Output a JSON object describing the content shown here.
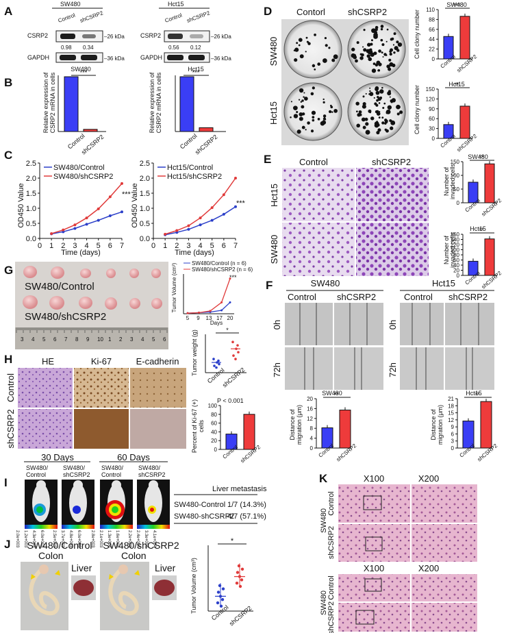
{
  "panels": {
    "A": {
      "letter": "A",
      "blots": [
        {
          "cell": "SW480",
          "lanes": [
            "Control",
            "shCSRP2"
          ],
          "rows": [
            "CSRP2",
            "GAPDH"
          ],
          "values": [
            "0.98",
            "0.34"
          ],
          "kda": [
            "26 kDa",
            "36 kDa"
          ]
        },
        {
          "cell": "Hct15",
          "lanes": [
            "Control",
            "shCSRP2"
          ],
          "rows": [
            "CSRP2",
            "GAPDH"
          ],
          "values": [
            "0.56",
            "0.12"
          ],
          "kda": [
            "26 kDa",
            "36 kDa"
          ]
        }
      ]
    },
    "B": {
      "letter": "B",
      "ylabel_line1": "Relative expression of",
      "ylabel_line2": "CSRP2 mRNA in cells",
      "sig": "***",
      "charts": [
        {
          "title": "SW480",
          "categories": [
            "Control",
            "shCSRP2"
          ],
          "values": [
            1.0,
            0.04
          ]
        },
        {
          "title": "Hct15",
          "categories": [
            "Control",
            "shCSRP2"
          ],
          "values": [
            1.0,
            0.07
          ]
        }
      ]
    },
    "C": {
      "letter": "C",
      "ylabel": "OD450 Value",
      "xlabel": "Time (days)",
      "sig": "***",
      "xticks": [
        "0",
        "1",
        "2",
        "3",
        "4",
        "5",
        "6",
        "7"
      ],
      "yticks": [
        "0.0",
        "0.5",
        "1.0",
        "1.5",
        "2.0",
        "2.5"
      ],
      "charts": [
        {
          "series": [
            {
              "name": "SW480/Control",
              "color": "#2b3fc9",
              "x": [
                1,
                2,
                3,
                4,
                5,
                6,
                7
              ],
              "y": [
                0.15,
                0.22,
                0.33,
                0.47,
                0.6,
                0.75,
                0.88
              ]
            },
            {
              "name": "SW480/shCSRP2",
              "color": "#e03a3a",
              "x": [
                1,
                2,
                3,
                4,
                5,
                6,
                7
              ],
              "y": [
                0.16,
                0.28,
                0.45,
                0.68,
                0.98,
                1.38,
                1.82
              ]
            }
          ]
        },
        {
          "series": [
            {
              "name": "Hct15/Control",
              "color": "#2b3fc9",
              "x": [
                1,
                2,
                3,
                4,
                5,
                6,
                7
              ],
              "y": [
                0.12,
                0.2,
                0.3,
                0.45,
                0.6,
                0.8,
                1.05
              ]
            },
            {
              "name": "Hct15/shCSRP2",
              "color": "#e03a3a",
              "x": [
                1,
                2,
                3,
                4,
                5,
                6,
                7
              ],
              "y": [
                0.14,
                0.26,
                0.42,
                0.68,
                1.02,
                1.45,
                2.0
              ]
            }
          ]
        }
      ]
    },
    "D": {
      "letter": "D",
      "cols": [
        "Contorl",
        "shCSRP2"
      ],
      "rows": [
        "SW480",
        "Hct15"
      ],
      "ylabel": "Cell clony number",
      "sig": "***",
      "sig2": "**",
      "charts": [
        {
          "title": "SW480",
          "yticks": [
            "0",
            "22",
            "44",
            "66",
            "88",
            "110"
          ],
          "ymax": 110,
          "categories": [
            "Control",
            "shCSRP2"
          ],
          "values": [
            50,
            95
          ]
        },
        {
          "title": "Hct15",
          "yticks": [
            "0",
            "30",
            "60",
            "90",
            "120",
            "150"
          ],
          "ymax": 150,
          "categories": [
            "Control",
            "shCSRP2"
          ],
          "values": [
            42,
            98
          ]
        }
      ]
    },
    "E": {
      "letter": "E",
      "cols": [
        "Control",
        "shCSRP2"
      ],
      "rows": [
        "Hct15",
        "SW480"
      ],
      "ylabel_line1": "Number of",
      "ylabel_line2": "invaded cells",
      "sig": "**",
      "charts": [
        {
          "title": "SW480",
          "yticks": [
            "0",
            "50",
            "100",
            "150"
          ],
          "ymax": 150,
          "categories": [
            "Control",
            "shCSRP2"
          ],
          "values": [
            75,
            142
          ]
        },
        {
          "title": "Hct15",
          "yticks": [
            "0",
            "20",
            "40",
            "60",
            "80",
            "100",
            "120",
            "140",
            "160"
          ],
          "ymax": 160,
          "categories": [
            "Control",
            "shCSRP2"
          ],
          "values": [
            55,
            142
          ]
        }
      ]
    },
    "F": {
      "letter": "F",
      "groups": [
        "SW480",
        "Hct15"
      ],
      "cols": [
        "Control",
        "shCSRP2"
      ],
      "rows": [
        "0h",
        "72h"
      ],
      "ylabel_line1": "Distance of",
      "ylabel_line2": "migration (μm)",
      "sig": "**",
      "charts": [
        {
          "title": "SW480",
          "yticks": [
            "0",
            "4",
            "8",
            "12",
            "16",
            "20"
          ],
          "ymax": 20,
          "categories": [
            "Control",
            "shCSRP2"
          ],
          "values": [
            8.2,
            15.4
          ]
        },
        {
          "title": "Hct15",
          "yticks": [
            "0",
            "3",
            "6",
            "9",
            "12",
            "15",
            "18",
            "21"
          ],
          "ymax": 21,
          "categories": [
            "Control",
            "shCSRP2"
          ],
          "values": [
            11.5,
            19.8
          ]
        }
      ]
    },
    "G": {
      "letter": "G",
      "tumor_labels": [
        "SW480/Control",
        "SW480/shCSRP2"
      ],
      "ruler_numbers": [
        "3",
        "4",
        "5",
        "6",
        "7",
        "8",
        "9",
        "10",
        "1",
        "2",
        "3",
        "4",
        "5",
        "6"
      ],
      "volume": {
        "ylabel": "Tumor Volume (cm³)",
        "xlabel": "Days",
        "xticks": [
          "5",
          "9",
          "13",
          "17",
          "20"
        ],
        "sig": "***",
        "series": [
          {
            "name": "SW480/Control (n = 6)",
            "color": "#2b3fc9",
            "x": [
              5,
              9,
              13,
              17,
              20
            ],
            "y": [
              0.01,
              0.02,
              0.03,
              0.06,
              0.2
            ]
          },
          {
            "name": "SW480/shCSRP2 (n = 6)",
            "color": "#e03a3a",
            "x": [
              5,
              9,
              13,
              17,
              20
            ],
            "y": [
              0.01,
              0.02,
              0.05,
              0.2,
              0.62
            ]
          }
        ]
      },
      "weight": {
        "ylabel": "Tumor weight (g)",
        "categories": [
          "Control",
          "shCSRP2"
        ],
        "sig": "*",
        "values": [
          0.12,
          0.28
        ]
      }
    },
    "H": {
      "letter": "H",
      "cols": [
        "HE",
        "Ki-67",
        "E-cadherin"
      ],
      "rows": [
        "Control",
        "shCSRP2"
      ],
      "ylabel_line1": "Percent of Ki-67 (+)",
      "ylabel_line2": "cells",
      "pvalue": "P < 0.001",
      "charts": [
        {
          "categories": [
            "Control",
            "shCSRP2"
          ],
          "values": [
            35,
            80
          ]
        }
      ]
    },
    "I": {
      "letter": "I",
      "days": [
        "30 Days",
        "60 Days"
      ],
      "mice": [
        "SW480/Control",
        "SW480/shCSRP2",
        "SW480/Control",
        "SW480/shCSRP2"
      ],
      "scales": [
        [
          "2.0e+003",
          "1.2e+003",
          "4.3e+003",
          "6.0e+003"
        ],
        [
          "2.5e+003",
          "3.7e+003",
          "4.8e+003",
          "6.0e+003"
        ],
        [
          "2.8e+003",
          "2.1e+003",
          "1.3e+004",
          "1.6e+004"
        ],
        [
          "2.2e+003",
          "2.4e+004",
          "3.3e+004",
          "4.1e+004"
        ]
      ],
      "table": {
        "header": "Liver metastasis",
        "rows": [
          [
            "SW480-Control",
            "1/7 (14.3%)"
          ],
          [
            "SW480-shCSRP2",
            "4/7 (57.1%)"
          ]
        ]
      }
    },
    "J": {
      "letter": "J",
      "groups": [
        "SW480/Control",
        "SW480/shCSRP2"
      ],
      "organs": [
        "Colon",
        "Liver"
      ],
      "chart": {
        "ylabel": "Tumor Volume (cm³)",
        "sig": "*",
        "categories": [
          "Control",
          "shCSRP2"
        ],
        "values": [
          0.18,
          0.42
        ]
      }
    },
    "K": {
      "letter": "K",
      "mag": [
        "X100",
        "X200"
      ],
      "row_group": "SW480",
      "rows": [
        "Control",
        "shCSRP2"
      ]
    }
  }
}
